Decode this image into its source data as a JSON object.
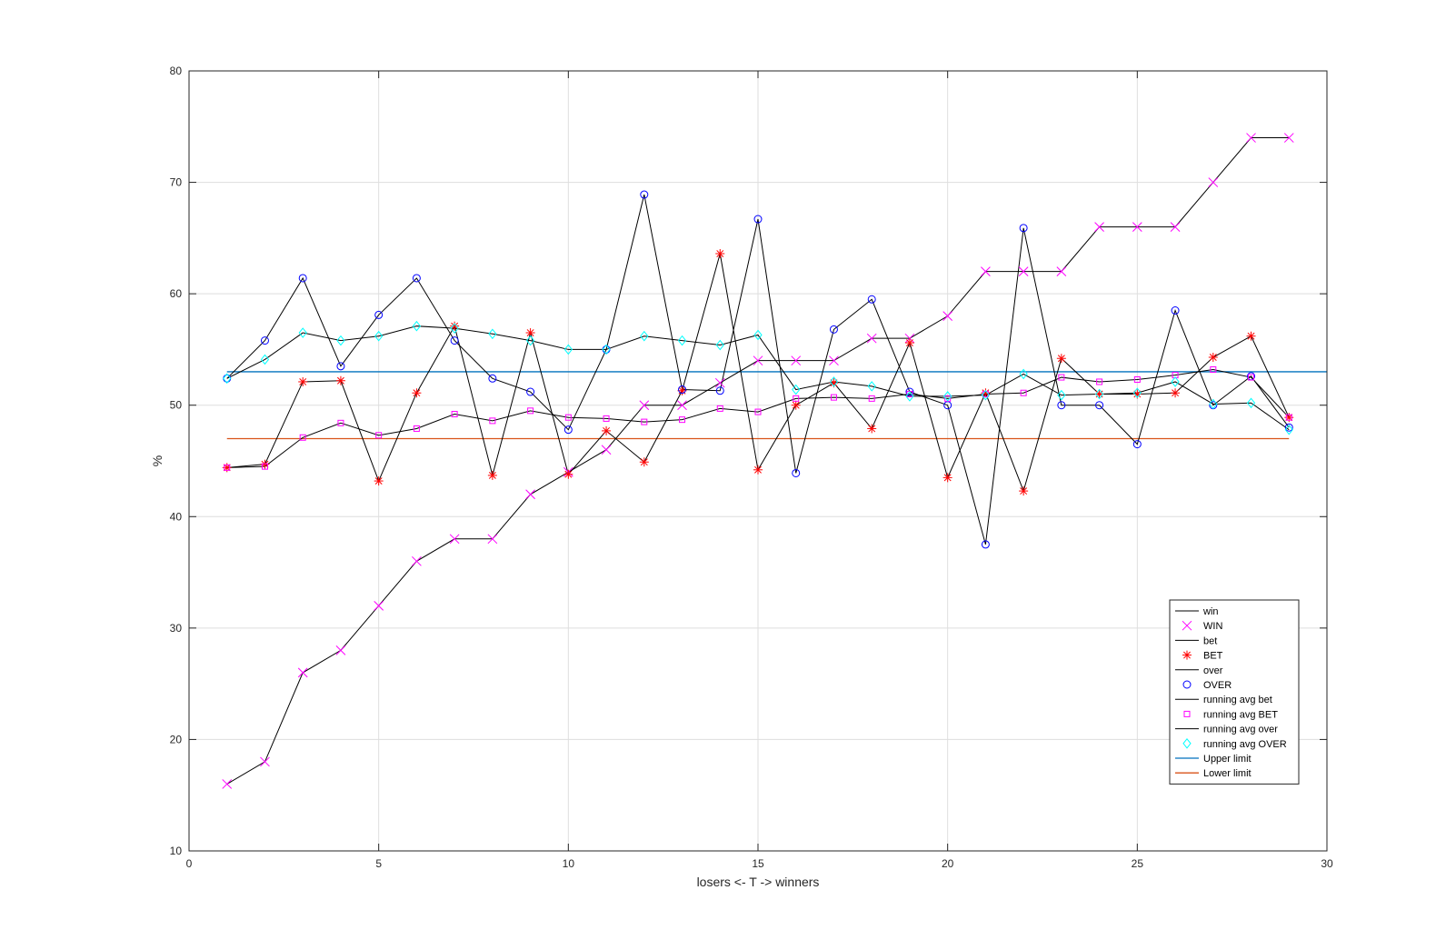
{
  "chart_data": {
    "type": "line",
    "title": "",
    "xlabel": "losers <- T -> winners",
    "ylabel": "%",
    "xlim": [
      0,
      30
    ],
    "ylim": [
      10,
      80
    ],
    "xticks": [
      0,
      5,
      10,
      15,
      20,
      25,
      30
    ],
    "yticks": [
      10,
      20,
      30,
      40,
      50,
      60,
      70,
      80
    ],
    "grid": true,
    "legend_position": "lower-right",
    "x": [
      1,
      2,
      3,
      4,
      5,
      6,
      7,
      8,
      9,
      10,
      11,
      12,
      13,
      14,
      15,
      16,
      17,
      18,
      19,
      20,
      21,
      22,
      23,
      24,
      25,
      26,
      27,
      28,
      29
    ],
    "series": [
      {
        "name": "WIN",
        "line_name": "win",
        "marker": "x",
        "marker_color": "#ff00ff",
        "line_color": "#000000",
        "values": [
          16,
          18,
          26,
          28,
          32,
          36,
          38,
          38,
          42,
          44,
          46,
          50,
          50,
          52,
          54,
          54,
          54,
          56,
          56,
          58,
          62,
          62,
          62,
          66,
          66,
          66,
          70,
          74,
          74
        ]
      },
      {
        "name": "BET",
        "line_name": "bet",
        "marker": "asterisk",
        "marker_color": "#ff0000",
        "line_color": "#000000",
        "values": [
          44.4,
          44.7,
          52.1,
          52.2,
          43.2,
          51.1,
          57.1,
          43.7,
          56.5,
          43.8,
          47.7,
          44.9,
          51.3,
          63.6,
          44.2,
          50.0,
          52.0,
          47.9,
          55.6,
          43.5,
          51.1,
          42.3,
          54.2,
          51.0,
          51.0,
          51.1,
          54.3,
          56.2,
          48.9
        ]
      },
      {
        "name": "OVER",
        "line_name": "over",
        "marker": "circle",
        "marker_color": "#0000ff",
        "line_color": "#000000",
        "values": [
          52.4,
          55.8,
          61.4,
          53.5,
          58.1,
          61.4,
          55.8,
          52.4,
          51.2,
          47.8,
          55.0,
          68.9,
          51.4,
          51.3,
          66.7,
          43.9,
          56.8,
          59.5,
          51.2,
          50.0,
          37.5,
          65.9,
          50.0,
          50.0,
          46.5,
          58.5,
          50.0,
          52.6,
          48.0
        ]
      },
      {
        "name": "running avg BET",
        "line_name": "running avg bet",
        "marker": "square",
        "marker_color": "#ff00ff",
        "line_color": "#000000",
        "values": [
          44.4,
          44.5,
          47.1,
          48.4,
          47.3,
          47.9,
          49.2,
          48.6,
          49.5,
          48.9,
          48.8,
          48.5,
          48.7,
          49.7,
          49.4,
          50.6,
          50.7,
          50.6,
          51.0,
          50.6,
          51.0,
          51.1,
          52.5,
          52.1,
          52.3,
          52.7,
          53.2,
          52.5,
          48.9
        ]
      },
      {
        "name": "running avg OVER",
        "line_name": "running avg over",
        "marker": "diamond",
        "marker_color": "#00ffff",
        "line_color": "#000000",
        "values": [
          52.4,
          54.1,
          56.5,
          55.8,
          56.2,
          57.1,
          56.9,
          56.4,
          55.8,
          55.0,
          55.0,
          56.2,
          55.8,
          55.4,
          56.3,
          51.4,
          52.1,
          51.7,
          50.8,
          50.8,
          50.9,
          52.8,
          50.9,
          51.0,
          51.1,
          52.1,
          50.1,
          50.2,
          47.8
        ]
      }
    ],
    "reference_lines": [
      {
        "name": "Upper limit",
        "y": 53,
        "x_range": [
          1,
          30
        ],
        "color": "#0072bd"
      },
      {
        "name": "Lower limit",
        "y": 47,
        "x_range": [
          1,
          29
        ],
        "color": "#d95319"
      }
    ],
    "legend": [
      {
        "label": "win",
        "kind": "line",
        "color": "#000000"
      },
      {
        "label": "WIN",
        "kind": "marker",
        "marker": "x",
        "color": "#ff00ff"
      },
      {
        "label": "bet",
        "kind": "line",
        "color": "#000000"
      },
      {
        "label": "BET",
        "kind": "marker",
        "marker": "asterisk",
        "color": "#ff0000"
      },
      {
        "label": "over",
        "kind": "line",
        "color": "#000000"
      },
      {
        "label": "OVER",
        "kind": "marker",
        "marker": "circle",
        "color": "#0000ff"
      },
      {
        "label": "running avg bet",
        "kind": "line",
        "color": "#000000"
      },
      {
        "label": "running avg BET",
        "kind": "marker",
        "marker": "square",
        "color": "#ff00ff"
      },
      {
        "label": "running avg over",
        "kind": "line",
        "color": "#000000"
      },
      {
        "label": "running avg OVER",
        "kind": "marker",
        "marker": "diamond",
        "color": "#00ffff"
      },
      {
        "label": "Upper limit",
        "kind": "line",
        "color": "#0072bd"
      },
      {
        "label": "Lower limit",
        "kind": "line",
        "color": "#d95319"
      }
    ]
  }
}
